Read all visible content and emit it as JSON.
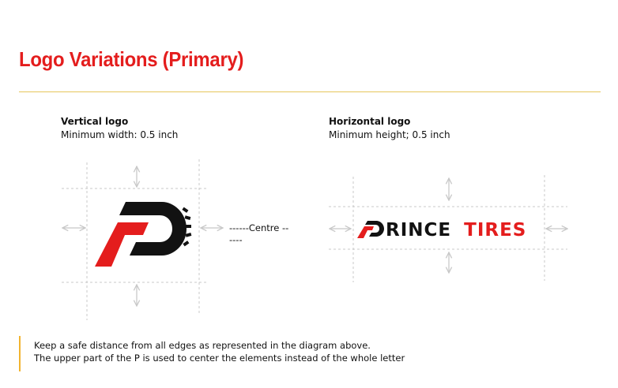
{
  "page": {
    "title": "Logo Variations (Primary)",
    "accent_color": "#e41d1d",
    "rule_color": "#e6c65c"
  },
  "vertical_logo": {
    "heading": "Vertical logo",
    "subtext": "Minimum width: 0.5 inch",
    "icon": "p-wheel-monogram-icon"
  },
  "horizontal_logo": {
    "heading": "Horizontal logo",
    "subtext": "Minimum height; 0.5 inch",
    "wordmark_part1": "RINCE",
    "wordmark_part2": "TIRES",
    "icon": "p-monogram-icon"
  },
  "centre_label": "------Centre --\n----",
  "note": {
    "line1": "Keep a safe distance from all edges as represented in the diagram above.",
    "line2": "The upper part of the P is used to center the elements instead of the whole letter"
  },
  "colors": {
    "black": "#121212",
    "red": "#e41d1d",
    "guide": "#c8c8c8",
    "note_border": "#f2b430"
  }
}
